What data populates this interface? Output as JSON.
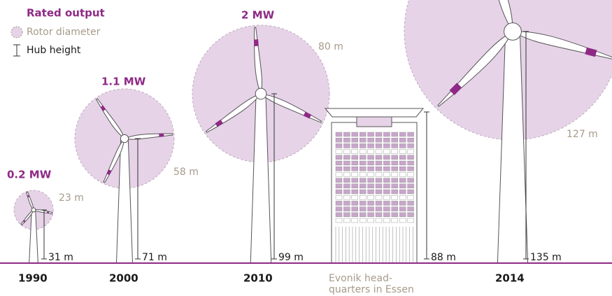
{
  "legend": {
    "title": "Rated output",
    "rotor": "Rotor diameter",
    "hub": "Hub height"
  },
  "turbines": [
    {
      "year": "1990",
      "output": "0.2 MW",
      "rotor": "23 m",
      "hub": "31 m"
    },
    {
      "year": "2000",
      "output": "1.1 MW",
      "rotor": "58 m",
      "hub": "71 m"
    },
    {
      "year": "2010",
      "output": "2 MW",
      "rotor": "80 m",
      "hub": "99 m"
    },
    {
      "year": "2014",
      "output": "",
      "rotor": "127 m",
      "hub": "135 m"
    }
  ],
  "building": {
    "label_line1": "Evonik head-",
    "label_line2": "quarters in Essen",
    "height": "88 m"
  }
}
